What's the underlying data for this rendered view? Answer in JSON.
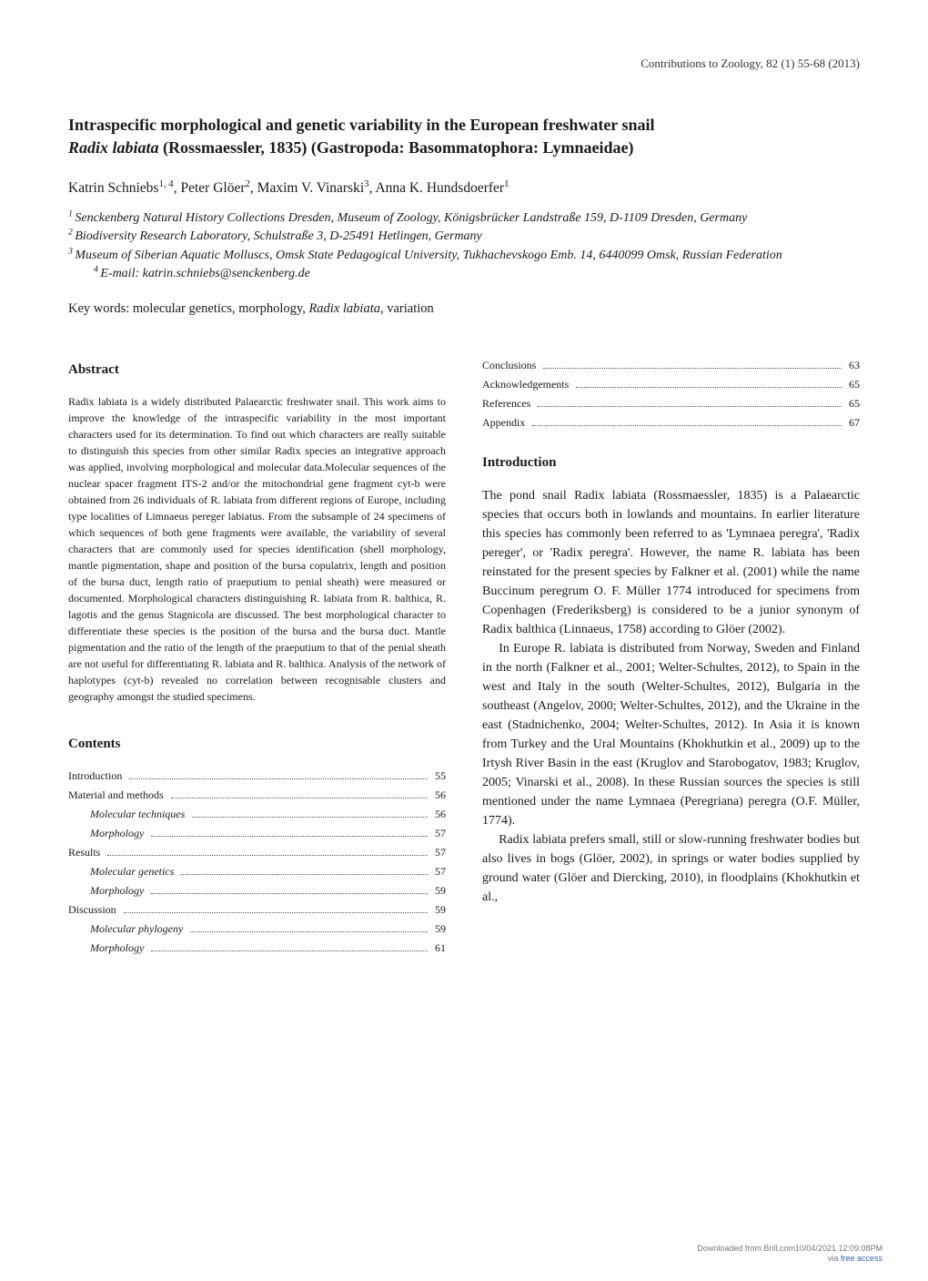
{
  "runningHeader": "Contributions to Zoology, 82 (1) 55-68 (2013)",
  "title_line1": "Intraspecific morphological and genetic variability in the European freshwater snail ",
  "title_line2_pre": "",
  "title_species": "Radix labiata",
  "title_line2_post": " (Rossmaessler, 1835) (Gastropoda: Basommatophora: Lymnaeidae)",
  "authors_pre1": "Katrin Schniebs",
  "authors_sup1": "1, 4",
  "authors_mid1": ", Peter Glöer",
  "authors_sup2": "2",
  "authors_mid2": ", Maxim V. Vinarski",
  "authors_sup3": "3",
  "authors_mid3": ", Anna K. Hundsdoerfer",
  "authors_sup4": "1",
  "aff1_sup": "1 ",
  "aff1": "Senckenberg Natural History Collections Dresden, Museum of Zoology, Königsbrücker Landstraße 159, D-1109 Dresden, Germany",
  "aff2_sup": "2 ",
  "aff2": "Biodiversity Research Laboratory, Schulstraße 3, D-25491 Hetlingen, Germany",
  "aff3_sup": "3 ",
  "aff3": "Museum of Siberian Aquatic Molluscs, Omsk State Pedagogical University, Tukhachevskogo Emb. 14, 6440099 Omsk, Russian Federation",
  "aff4_sup": "4 ",
  "aff4": "E-mail: katrin.schniebs@senckenberg.de",
  "keywords_label": "Key words: ",
  "keywords_pre": "molecular genetics, morphology, ",
  "keywords_species": "Radix labiata",
  "keywords_post": ", variation",
  "abstract_heading": "Abstract",
  "abstract_body": "Radix labiata is a widely distributed Palaearctic freshwater snail. This work aims to improve the knowledge of the intraspecific variability in the most important characters used for its determination. To find out which characters are really suitable to distinguish this species from other similar Radix species an integrative approach was applied, involving morphological and molecular data.Molecular sequences of the nuclear spacer fragment ITS-2 and/or the mitochondrial gene fragment cyt-b were obtained from 26 individuals of R. labiata from different regions of Europe, including type localities of Limnaeus pereger labiatus. From the subsample of 24 specimens of which sequences of both gene fragments were available, the variability of several characters that are commonly used for species identification (shell morphology, mantle pigmentation, shape and position of the bursa copulatrix, length and position of the bursa duct, length ratio of praeputium to penial sheath) were measured or documented. Morphological characters distinguishing R. labiata from R. balthica, R. lagotis and the genus Stagnicola are discussed. The best morphological character to differentiate these species is the position of the bursa and the bursa duct. Mantle pigmentation and the ratio of the length of the praeputium to that of the penial sheath are not useful for differentiating R. labiata and R. balthica. Analysis of the network of haplotypes (cyt-b) revealed no correlation between recognisable clusters and geography amongst the studied specimens.",
  "contents_heading": "Contents",
  "intro_heading": "Introduction",
  "toc_left": [
    {
      "label": "Introduction ",
      "page": "55",
      "sub": false
    },
    {
      "label": "Material and methods ",
      "page": "56",
      "sub": false
    },
    {
      "label": "Molecular techniques ",
      "page": "56",
      "sub": true
    },
    {
      "label": "Morphology ",
      "page": "57",
      "sub": true
    },
    {
      "label": "Results ",
      "page": "57",
      "sub": false
    },
    {
      "label": "Molecular genetics ",
      "page": "57",
      "sub": true
    },
    {
      "label": "Morphology ",
      "page": "59",
      "sub": true
    },
    {
      "label": "Discussion ",
      "page": "59",
      "sub": false
    },
    {
      "label": "Molecular phylogeny ",
      "page": "59",
      "sub": true
    },
    {
      "label": "Morphology ",
      "page": "61",
      "sub": true
    }
  ],
  "toc_right": [
    {
      "label": "Conclusions ",
      "page": "63",
      "sub": false
    },
    {
      "label": "Acknowledgements ",
      "page": "65",
      "sub": false
    },
    {
      "label": "References ",
      "page": "65",
      "sub": false
    },
    {
      "label": "Appendix ",
      "page": "67",
      "sub": false
    }
  ],
  "intro_p1": "The pond snail Radix labiata (Rossmaessler, 1835) is a Palaearctic species that occurs both in lowlands and mountains. In earlier literature this species has commonly been referred to as 'Lymnaea peregra', 'Radix pereger', or 'Radix peregra'. However, the name R. labiata has been reinstated for the present species by Falkner et al. (2001) while the name Buccinum peregrum O. F. Müller 1774 introduced for specimens from Copenhagen (Frederiksberg) is considered to be a junior synonym of Radix balthica (Linnaeus, 1758) according to Glöer (2002).",
  "intro_p2": "In Europe R. labiata is distributed from Norway, Sweden and Finland in the north (Falkner et al., 2001; Welter-Schultes, 2012), to Spain in the west and Italy in the south (Welter-Schultes, 2012), Bulgaria in the southeast (Angelov, 2000; Welter-Schultes, 2012), and the Ukraine in the east (Stadnichenko, 2004; Welter-Schultes, 2012). In Asia it is known from Turkey and the Ural Mountains (Khokhutkin et al., 2009) up to the Irtysh River Basin in the east (Kruglov and Starobogatov, 1983; Kruglov, 2005; Vinarski et al., 2008). In these Russian sources the species is still mentioned under the name Lymnaea (Peregriana) peregra (O.F. Müller, 1774).",
  "intro_p3": "Radix labiata prefers small, still or slow-running freshwater bodies but also lives in bogs (Glöer, 2002), in springs or water bodies supplied by ground water (Glöer and Diercking, 2010), in floodplains (Khokhutkin et al.,",
  "footer_line1": "Downloaded from Brill.com10/04/2021 12:09:08PM",
  "footer_line2_pre": "via ",
  "footer_link": "free access"
}
